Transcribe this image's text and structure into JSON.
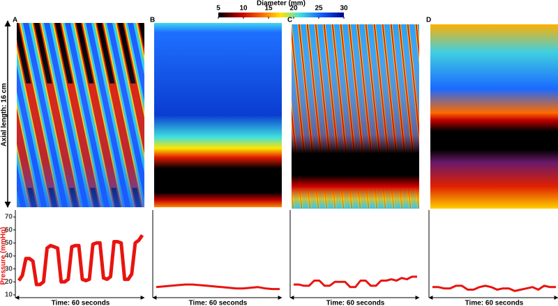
{
  "colorbar": {
    "title": "Diameter (mm)",
    "lim": [
      5,
      30
    ],
    "ticks": [
      5,
      10,
      15,
      20,
      25,
      30
    ]
  },
  "axial_label": "Axial length: 16 cm",
  "chart_data": [
    {
      "type": "line",
      "label": "A",
      "xlabel": "Time:  60 seconds",
      "ylabel": "Pressure (mmHg)",
      "color": "#e8140f",
      "ylim": [
        10,
        70
      ],
      "yticks": [
        10,
        20,
        30,
        40,
        50,
        60,
        70
      ],
      "values": [
        21,
        25,
        38,
        38,
        36,
        18,
        18,
        20,
        46,
        48,
        47,
        46,
        20,
        20,
        22,
        47,
        48,
        48,
        22,
        21,
        22,
        49,
        50,
        50,
        23,
        22,
        24,
        51,
        51,
        50,
        22,
        22,
        26,
        50,
        52,
        56
      ]
    },
    {
      "type": "line",
      "label": "B",
      "xlabel": "Time:  60 seconds",
      "color": "#e8140f",
      "ylim": [
        10,
        70
      ],
      "values": [
        16,
        16.5,
        17,
        17.5,
        18,
        18,
        17.5,
        17,
        16.5,
        16,
        15.5,
        15,
        15,
        15.5,
        16,
        15,
        14.5,
        14.5
      ]
    },
    {
      "type": "line",
      "label": "C",
      "xlabel": "Time:  60 seconds",
      "color": "#e8140f",
      "ylim": [
        10,
        70
      ],
      "values": [
        18,
        18,
        17,
        17,
        21,
        21,
        17,
        17,
        20,
        20,
        20,
        16,
        16,
        21,
        21,
        17,
        17,
        21,
        21,
        22,
        21,
        23,
        22,
        24,
        24
      ]
    },
    {
      "type": "line",
      "label": "D",
      "xlabel": "Time:  60 seconds",
      "color": "#e8140f",
      "ylim": [
        10,
        70
      ],
      "values": [
        16,
        16,
        15,
        15,
        17,
        17,
        14,
        14,
        16,
        17,
        16,
        14,
        15,
        15,
        13,
        14,
        15,
        16,
        14,
        17,
        16,
        16
      ]
    }
  ]
}
